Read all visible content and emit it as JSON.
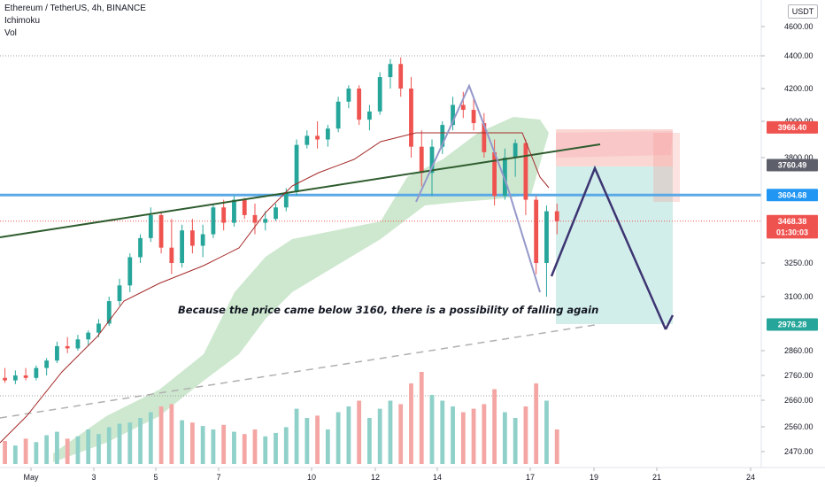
{
  "header": {
    "symbol_line": "Ethereum / TetherUS, 4h, BINANCE",
    "indicator_1": "Ichimoku",
    "indicator_2": "Vol"
  },
  "currency_badge": "USDT",
  "annotation": "Because the price came below 3160, there is a possibility of falling again",
  "colors": {
    "up": "#26a69a",
    "down": "#ef5350",
    "up_volume": "#8fd1c9",
    "down_volume": "#f3a6a3",
    "kumo_bull": "#a5d6a7",
    "resistance": "#5aa9e6",
    "trendline": "#2e5c2e",
    "projection": "#3d3572",
    "pattern": "#9598c9",
    "base_line": "#a52a2a"
  },
  "chart_data": {
    "type": "candlestick",
    "timeframe": "4h",
    "y_axis": {
      "ticks": [
        4600,
        4400,
        4200,
        4000,
        3800,
        3250,
        3100,
        2860,
        2760,
        2660,
        2560,
        2470
      ],
      "tick_labels": [
        "4600.00",
        "4400.00",
        "4200.00",
        "4000.00",
        "3800.00",
        "3250.00",
        "3100.00",
        "2860.00",
        "2760.00",
        "2660.00",
        "2560.00",
        "2470.00"
      ],
      "scale": "log"
    },
    "x_axis": {
      "tick_labels": [
        "May",
        "3",
        "5",
        "7",
        "10",
        "12",
        "14",
        "17",
        "19",
        "21",
        "24"
      ],
      "tick_dates": [
        "2021-05-01",
        "2021-05-03",
        "2021-05-05",
        "2021-05-07",
        "2021-05-10",
        "2021-05-12",
        "2021-05-14",
        "2021-05-17",
        "2021-05-19",
        "2021-05-21",
        "2021-05-24"
      ]
    },
    "price_tags": [
      {
        "label": "3966.40",
        "value": 3966.4,
        "bg": "#ef5350",
        "fg": "#ffffff"
      },
      {
        "label": "3760.49",
        "value": 3760.49,
        "bg": "#5d606b",
        "fg": "#ffffff"
      },
      {
        "label": "3604.68",
        "value": 3604.68,
        "bg": "#2196f3",
        "fg": "#ffffff"
      },
      {
        "label": "3468.38",
        "value": 3468.38,
        "bg": "#ef5350",
        "fg": "#ffffff"
      },
      {
        "label": "01:30:03",
        "value": 3410,
        "bg": "#ef5350",
        "fg": "#ffffff"
      },
      {
        "label": "2976.28",
        "value": 2976.28,
        "bg": "#26a69a",
        "fg": "#ffffff"
      }
    ],
    "horizontal_lines": {
      "resistance": 3604.68,
      "top_dotted": 4400,
      "current_price_dotted": 3468.38,
      "lower_dotted": 2660
    },
    "candles": [
      {
        "t": "2021-04-29T20:00",
        "o": 2740,
        "h": 2780,
        "l": 2720,
        "c": 2750
      },
      {
        "t": "2021-04-30T04:00",
        "o": 2750,
        "h": 2790,
        "l": 2730,
        "c": 2740
      },
      {
        "t": "2021-04-30T12:00",
        "o": 2740,
        "h": 2780,
        "l": 2725,
        "c": 2760
      },
      {
        "t": "2021-04-30T20:00",
        "o": 2760,
        "h": 2790,
        "l": 2740,
        "c": 2750
      },
      {
        "t": "2021-05-01T04:00",
        "o": 2750,
        "h": 2800,
        "l": 2740,
        "c": 2790
      },
      {
        "t": "2021-05-01T12:00",
        "o": 2790,
        "h": 2830,
        "l": 2760,
        "c": 2820
      },
      {
        "t": "2021-05-01T20:00",
        "o": 2820,
        "h": 2900,
        "l": 2810,
        "c": 2880
      },
      {
        "t": "2021-05-02T04:00",
        "o": 2880,
        "h": 2920,
        "l": 2850,
        "c": 2870
      },
      {
        "t": "2021-05-02T12:00",
        "o": 2870,
        "h": 2930,
        "l": 2860,
        "c": 2910
      },
      {
        "t": "2021-05-02T20:00",
        "o": 2910,
        "h": 2950,
        "l": 2880,
        "c": 2940
      },
      {
        "t": "2021-05-03T04:00",
        "o": 2940,
        "h": 3000,
        "l": 2920,
        "c": 2980
      },
      {
        "t": "2021-05-03T12:00",
        "o": 2980,
        "h": 3100,
        "l": 2970,
        "c": 3080
      },
      {
        "t": "2021-05-03T20:00",
        "o": 3080,
        "h": 3180,
        "l": 3060,
        "c": 3150
      },
      {
        "t": "2021-05-04T04:00",
        "o": 3150,
        "h": 3300,
        "l": 3120,
        "c": 3280
      },
      {
        "t": "2021-05-04T12:00",
        "o": 3280,
        "h": 3400,
        "l": 3250,
        "c": 3380
      },
      {
        "t": "2021-05-04T20:00",
        "o": 3380,
        "h": 3540,
        "l": 3360,
        "c": 3500
      },
      {
        "t": "2021-05-05T04:00",
        "o": 3500,
        "h": 3520,
        "l": 3300,
        "c": 3330
      },
      {
        "t": "2021-05-05T12:00",
        "o": 3330,
        "h": 3480,
        "l": 3200,
        "c": 3250
      },
      {
        "t": "2021-05-05T20:00",
        "o": 3250,
        "h": 3450,
        "l": 3230,
        "c": 3420
      },
      {
        "t": "2021-05-06T04:00",
        "o": 3420,
        "h": 3480,
        "l": 3300,
        "c": 3340
      },
      {
        "t": "2021-05-06T12:00",
        "o": 3340,
        "h": 3450,
        "l": 3280,
        "c": 3400
      },
      {
        "t": "2021-05-06T20:00",
        "o": 3400,
        "h": 3560,
        "l": 3380,
        "c": 3540
      },
      {
        "t": "2021-05-07T04:00",
        "o": 3540,
        "h": 3580,
        "l": 3420,
        "c": 3460
      },
      {
        "t": "2021-05-07T12:00",
        "o": 3460,
        "h": 3600,
        "l": 3440,
        "c": 3580
      },
      {
        "t": "2021-05-07T20:00",
        "o": 3580,
        "h": 3590,
        "l": 3480,
        "c": 3500
      },
      {
        "t": "2021-05-08T04:00",
        "o": 3500,
        "h": 3560,
        "l": 3400,
        "c": 3460
      },
      {
        "t": "2021-05-08T12:00",
        "o": 3460,
        "h": 3520,
        "l": 3420,
        "c": 3480
      },
      {
        "t": "2021-05-08T20:00",
        "o": 3480,
        "h": 3560,
        "l": 3470,
        "c": 3540
      },
      {
        "t": "2021-05-09T04:00",
        "o": 3540,
        "h": 3640,
        "l": 3520,
        "c": 3620
      },
      {
        "t": "2021-05-09T12:00",
        "o": 3620,
        "h": 3900,
        "l": 3600,
        "c": 3870
      },
      {
        "t": "2021-05-09T20:00",
        "o": 3870,
        "h": 3950,
        "l": 3850,
        "c": 3920
      },
      {
        "t": "2021-05-10T04:00",
        "o": 3920,
        "h": 4000,
        "l": 3850,
        "c": 3900
      },
      {
        "t": "2021-05-10T12:00",
        "o": 3900,
        "h": 3980,
        "l": 3860,
        "c": 3960
      },
      {
        "t": "2021-05-10T20:00",
        "o": 3960,
        "h": 4150,
        "l": 3940,
        "c": 4120
      },
      {
        "t": "2021-05-11T04:00",
        "o": 4120,
        "h": 4220,
        "l": 4080,
        "c": 4200
      },
      {
        "t": "2021-05-11T12:00",
        "o": 4200,
        "h": 4220,
        "l": 3980,
        "c": 4010
      },
      {
        "t": "2021-05-11T20:00",
        "o": 4010,
        "h": 4100,
        "l": 3950,
        "c": 4060
      },
      {
        "t": "2021-05-12T04:00",
        "o": 4060,
        "h": 4300,
        "l": 4040,
        "c": 4270
      },
      {
        "t": "2021-05-12T12:00",
        "o": 4270,
        "h": 4380,
        "l": 4200,
        "c": 4350
      },
      {
        "t": "2021-05-12T20:00",
        "o": 4350,
        "h": 4390,
        "l": 4150,
        "c": 4200
      },
      {
        "t": "2021-05-13T04:00",
        "o": 4200,
        "h": 4270,
        "l": 3800,
        "c": 3860
      },
      {
        "t": "2021-05-13T12:00",
        "o": 3860,
        "h": 3950,
        "l": 3650,
        "c": 3720
      },
      {
        "t": "2021-05-13T20:00",
        "o": 3720,
        "h": 3900,
        "l": 3600,
        "c": 3860
      },
      {
        "t": "2021-05-14T04:00",
        "o": 3860,
        "h": 4000,
        "l": 3820,
        "c": 3980
      },
      {
        "t": "2021-05-14T12:00",
        "o": 3980,
        "h": 4150,
        "l": 3950,
        "c": 4100
      },
      {
        "t": "2021-05-14T20:00",
        "o": 4100,
        "h": 4180,
        "l": 4020,
        "c": 4070
      },
      {
        "t": "2021-05-15T04:00",
        "o": 4070,
        "h": 4150,
        "l": 3950,
        "c": 3990
      },
      {
        "t": "2021-05-15T12:00",
        "o": 3990,
        "h": 4050,
        "l": 3800,
        "c": 3830
      },
      {
        "t": "2021-05-15T20:00",
        "o": 3830,
        "h": 3900,
        "l": 3550,
        "c": 3600
      },
      {
        "t": "2021-05-16T04:00",
        "o": 3600,
        "h": 3850,
        "l": 3580,
        "c": 3800
      },
      {
        "t": "2021-05-16T12:00",
        "o": 3800,
        "h": 3900,
        "l": 3700,
        "c": 3880
      },
      {
        "t": "2021-05-16T20:00",
        "o": 3880,
        "h": 3900,
        "l": 3500,
        "c": 3580
      },
      {
        "t": "2021-05-17T04:00",
        "o": 3580,
        "h": 3600,
        "l": 3200,
        "c": 3250
      },
      {
        "t": "2021-05-17T12:00",
        "o": 3250,
        "h": 3550,
        "l": 3100,
        "c": 3520
      },
      {
        "t": "2021-05-17T20:00",
        "o": 3520,
        "h": 3560,
        "l": 3400,
        "c": 3468
      }
    ],
    "volume_relative": [
      0.18,
      0.2,
      0.16,
      0.22,
      0.19,
      0.25,
      0.28,
      0.22,
      0.24,
      0.3,
      0.26,
      0.32,
      0.35,
      0.36,
      0.4,
      0.45,
      0.5,
      0.52,
      0.38,
      0.36,
      0.33,
      0.3,
      0.34,
      0.28,
      0.26,
      0.3,
      0.24,
      0.27,
      0.32,
      0.48,
      0.4,
      0.42,
      0.3,
      0.45,
      0.5,
      0.55,
      0.4,
      0.48,
      0.55,
      0.52,
      0.7,
      0.8,
      0.6,
      0.55,
      0.5,
      0.45,
      0.48,
      0.52,
      0.65,
      0.45,
      0.4,
      0.5,
      0.7,
      0.55,
      0.3
    ],
    "annotation_price": 3160
  }
}
